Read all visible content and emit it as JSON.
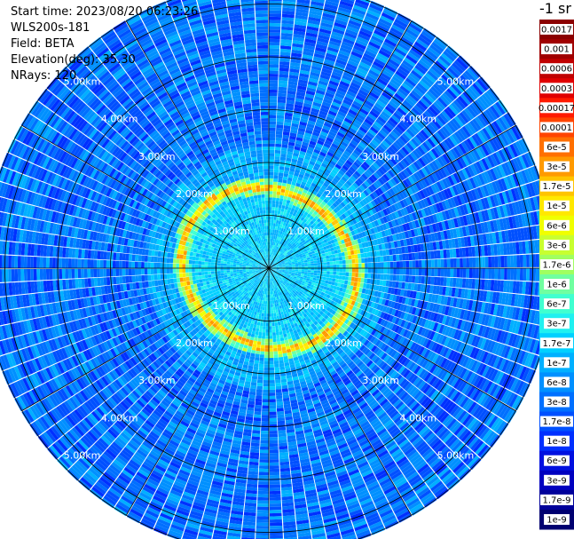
{
  "header": {
    "start_time": "Start time: 2023/08/20 06:23:26",
    "instrument": "WLS200s-181",
    "field": "Field: BETA",
    "elevation": "Elevation(deg): 35.30",
    "nrays": "NRays: 120"
  },
  "colorbar": {
    "title": "-1 sr",
    "labels": [
      "0.0017",
      "0.001",
      "0.0006",
      "0.0003",
      "0.00017",
      "0.0001",
      "6e-5",
      "3e-5",
      "1.7e-5",
      "1e-5",
      "6e-6",
      "3e-6",
      "1.7e-6",
      "1e-6",
      "6e-7",
      "3e-7",
      "1.7e-7",
      "1e-7",
      "6e-8",
      "3e-8",
      "1.7e-8",
      "1e-8",
      "6e-9",
      "3e-9",
      "1.7e-9",
      "1e-9"
    ],
    "colors": [
      "#8b0000",
      "#a00000",
      "#c00000",
      "#e00000",
      "#ff1a00",
      "#ff4500",
      "#ff7000",
      "#ff9a00",
      "#ffc400",
      "#ffe800",
      "#f0ff00",
      "#c8ff30",
      "#a0ff60",
      "#70ffa0",
      "#40ffd0",
      "#20f0f0",
      "#00d0ff",
      "#00b0ff",
      "#0090ff",
      "#0070ff",
      "#0050ff",
      "#0030ff",
      "#0010e0",
      "#0000c0",
      "#00009a",
      "#000070"
    ]
  },
  "chart_data": {
    "type": "heatmap",
    "projection": "polar (PPI scan)",
    "rays": 120,
    "range_unit": "km",
    "range_max_km": 5.4,
    "range_rings_km": [
      1,
      2,
      3,
      4,
      5
    ],
    "range_ring_labels": [
      "1.00km",
      "2.00km",
      "3.00km",
      "4.00km",
      "5.00km"
    ],
    "value_field": "BETA",
    "color_scale": "log",
    "value_range": [
      1e-09,
      0.0017
    ],
    "profile": [
      {
        "range_km": 0.0,
        "beta": 1e-07
      },
      {
        "range_km": 1.2,
        "beta": 1.7e-07
      },
      {
        "range_km": 1.6,
        "beta": 1e-05
      },
      {
        "range_km": 2.0,
        "beta": 6e-08
      },
      {
        "range_km": 3.0,
        "beta": 3e-08
      },
      {
        "range_km": 5.0,
        "beta": 1.7e-08
      }
    ]
  }
}
